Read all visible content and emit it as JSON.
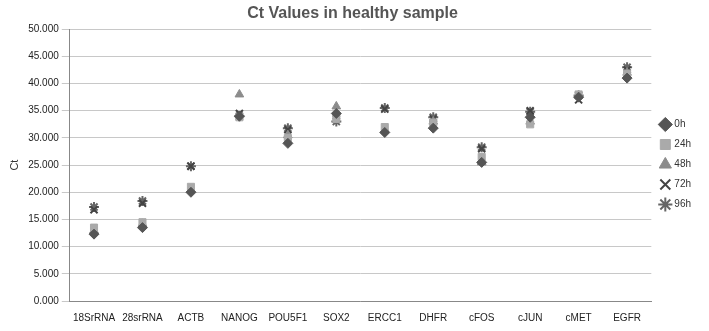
{
  "chart_data": {
    "type": "scatter",
    "title": "Ct Values in healthy sample",
    "y_label": "Ct",
    "categories": [
      "18SrRNA",
      "28srRNA",
      "ACTB",
      "NANOG",
      "POU5F1",
      "SOX2",
      "ERCC1",
      "DHFR",
      "cFOS",
      "cJUN",
      "cMET",
      "EGFR"
    ],
    "series": [
      {
        "name": "0h",
        "color": "#555555",
        "marker": "diamond",
        "values": [
          12.3,
          13.5,
          20.0,
          34.0,
          29.0,
          34.5,
          31.0,
          31.8,
          25.5,
          33.8,
          37.5,
          41.0
        ]
      },
      {
        "name": "24h",
        "color": "#aaaaaa",
        "marker": "square",
        "values": [
          13.5,
          14.5,
          21.0,
          33.8,
          30.0,
          33.5,
          32.0,
          32.8,
          26.5,
          32.5,
          38.0,
          41.8
        ]
      },
      {
        "name": "48h",
        "color": "#8c8c8c",
        "marker": "triangle",
        "values": [
          13.0,
          14.2,
          20.5,
          38.0,
          30.5,
          35.8,
          31.5,
          33.0,
          25.5,
          33.0,
          37.8,
          42.0
        ]
      },
      {
        "name": "72h",
        "color": "#444444",
        "marker": "x",
        "values": [
          16.8,
          18.0,
          24.8,
          34.5,
          31.5,
          33.5,
          35.3,
          33.5,
          28.0,
          35.0,
          37.0,
          42.5
        ]
      },
      {
        "name": "96h",
        "color": "#666666",
        "marker": "star",
        "values": [
          17.3,
          18.4,
          24.8,
          34.0,
          31.8,
          33.0,
          35.5,
          33.8,
          28.3,
          34.8,
          37.8,
          43.0
        ]
      }
    ],
    "ylim": [
      0,
      50
    ],
    "yticks": [
      {
        "value": 0,
        "label": "0.000"
      },
      {
        "value": 5,
        "label": "5.000"
      },
      {
        "value": 10,
        "label": "10.000"
      },
      {
        "value": 15,
        "label": "15.000"
      },
      {
        "value": 20,
        "label": "20.000"
      },
      {
        "value": 25,
        "label": "25.000"
      },
      {
        "value": 30,
        "label": "30.000"
      },
      {
        "value": 35,
        "label": "35.000"
      },
      {
        "value": 40,
        "label": "40.000"
      },
      {
        "value": 45,
        "label": "45.000"
      },
      {
        "value": 50,
        "label": "50.000"
      }
    ],
    "grid": true,
    "legend": "right"
  }
}
